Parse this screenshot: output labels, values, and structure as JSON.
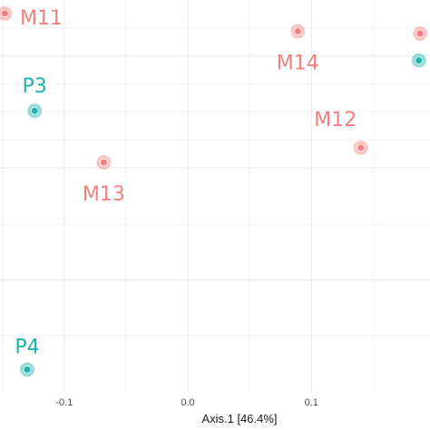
{
  "chart_data": {
    "type": "scatter",
    "title": "",
    "xlabel": "Axis.1 [46.4%]",
    "ylabel": "",
    "xlim": [
      -0.152,
      0.196
    ],
    "ylim": [
      -0.2,
      0.15
    ],
    "x_ticks": [
      -0.1,
      0.0,
      0.1
    ],
    "x_tick_labels": [
      "-0.1",
      "0.0",
      "0.1"
    ],
    "grid": true,
    "legend": "none",
    "series": [
      {
        "color": "#f08080",
        "points": [
          {
            "label": "M11",
            "x": -0.148,
            "y": 0.138
          },
          {
            "label": "M14",
            "x": 0.089,
            "y": 0.122
          },
          {
            "label": "M12",
            "x": 0.14,
            "y": 0.018
          },
          {
            "label": "M13",
            "x": -0.068,
            "y": 0.005
          },
          {
            "label": "",
            "x": 0.188,
            "y": 0.12
          }
        ]
      },
      {
        "color": "#20b2aa",
        "points": [
          {
            "label": "P3",
            "x": -0.124,
            "y": 0.051
          },
          {
            "label": "P4",
            "x": -0.13,
            "y": -0.18
          },
          {
            "label": "",
            "x": 0.187,
            "y": 0.096
          }
        ]
      }
    ]
  }
}
